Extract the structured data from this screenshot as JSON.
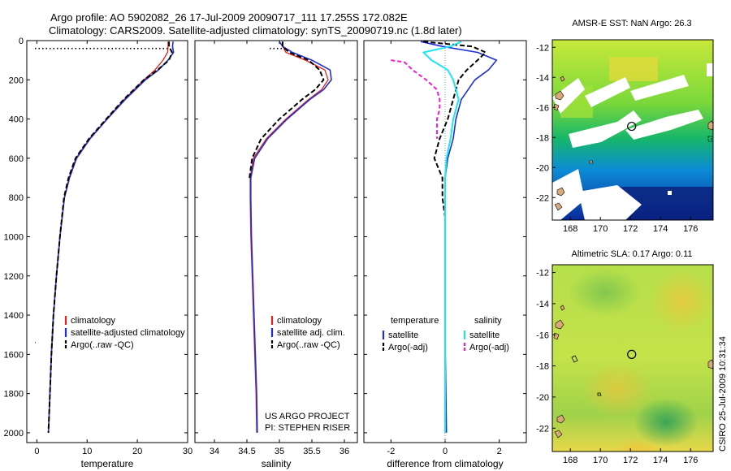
{
  "header": {
    "line1": "Argo profile: AO 5902082_26 17-Jul-2009 20090717_111 17.255S 172.082E",
    "line2": "Climatology: CARS2009. Satellite-adjusted climatology: synTS_20090719.nc (1.8d later)"
  },
  "footer_left": "US ARGO PROJECT",
  "footer_left2": "PI: STEPHEN RISER",
  "side_credit": "CSIRO 25-Jul-2009 10:31:34",
  "colors": {
    "climatology": "#e8211c",
    "satellite": "#1f2fd8",
    "argo": "#000000",
    "sat_salinity": "#1ee6f0",
    "argo_salinity": "#f21cd0"
  },
  "chart_data": [
    {
      "type": "line",
      "title": "",
      "xlabel": "temperature",
      "ylabel": "",
      "xlim": [
        -2,
        30
      ],
      "ylim": [
        2050,
        0
      ],
      "x_ticks": [
        0,
        10,
        20,
        30
      ],
      "y_ticks": [
        0,
        200,
        400,
        600,
        800,
        1000,
        1200,
        1400,
        1600,
        1800,
        2000
      ],
      "legend": [
        "climatology",
        "satellite-adjusted climatology",
        "Argo(..raw -QC)"
      ],
      "series": [
        {
          "name": "climatology",
          "depth": [
            5,
            30,
            60,
            100,
            150,
            200,
            300,
            400,
            500,
            600,
            700,
            800,
            1000,
            1200,
            1400,
            1600,
            1800,
            2000
          ],
          "values": [
            26.1,
            26.1,
            26.0,
            25.1,
            23.5,
            21.3,
            17.4,
            13.9,
            10.5,
            7.8,
            6.4,
            5.5,
            4.6,
            3.9,
            3.3,
            2.9,
            2.6,
            2.3
          ]
        },
        {
          "name": "satellite-adjusted climatology",
          "depth": [
            5,
            30,
            60,
            100,
            150,
            200,
            300,
            400,
            500,
            600,
            700,
            800,
            1000,
            1200,
            1400,
            1600,
            1800,
            2000
          ],
          "values": [
            27.1,
            27.0,
            27.2,
            26.1,
            24.2,
            21.6,
            17.6,
            14.0,
            10.6,
            7.9,
            6.5,
            5.5,
            4.6,
            3.9,
            3.3,
            2.9,
            2.6,
            2.3
          ]
        },
        {
          "name": "Argo(..raw -QC)",
          "depth": [
            5,
            30,
            60,
            100,
            150,
            200,
            300,
            400,
            500,
            600,
            700,
            800,
            1000,
            1200,
            1400,
            1600,
            1800,
            2000
          ],
          "values": [
            26.3,
            26.3,
            26.9,
            26.3,
            24.0,
            21.3,
            17.3,
            13.8,
            10.4,
            7.7,
            6.3,
            5.4,
            4.6,
            3.9,
            3.3,
            2.9,
            2.6,
            2.3
          ]
        }
      ]
    },
    {
      "type": "line",
      "title": "",
      "xlabel": "salinity",
      "ylabel": "",
      "xlim": [
        33.7,
        36.2
      ],
      "ylim": [
        2050,
        0
      ],
      "x_ticks": [
        34,
        34.5,
        35,
        35.5,
        36
      ],
      "y_ticks": [
        0,
        200,
        400,
        600,
        800,
        1000,
        1200,
        1400,
        1600,
        1800,
        2000
      ],
      "legend": [
        "climatology",
        "satellite adj. clim.",
        "Argo(..raw -QC)"
      ],
      "series": [
        {
          "name": "climatology",
          "depth": [
            5,
            30,
            60,
            100,
            150,
            200,
            250,
            300,
            400,
            500,
            600,
            700,
            800,
            1000,
            1200,
            1400,
            1600,
            1800,
            2000
          ],
          "values": [
            35.05,
            35.05,
            35.1,
            35.4,
            35.7,
            35.75,
            35.65,
            35.45,
            35.1,
            34.8,
            34.6,
            34.55,
            34.55,
            34.56,
            34.58,
            34.6,
            34.62,
            34.64,
            34.65
          ]
        },
        {
          "name": "satellite adj. clim.",
          "depth": [
            5,
            30,
            60,
            100,
            150,
            200,
            250,
            300,
            400,
            500,
            600,
            700,
            800,
            1000,
            1200,
            1400,
            1600,
            1800,
            2000
          ],
          "values": [
            35.0,
            35.05,
            35.2,
            35.5,
            35.78,
            35.8,
            35.68,
            35.47,
            35.12,
            34.82,
            34.62,
            34.56,
            34.56,
            34.57,
            34.59,
            34.61,
            34.63,
            34.65,
            34.66
          ]
        },
        {
          "name": "Argo(..raw -QC)",
          "depth": [
            5,
            30,
            60,
            100,
            150,
            200,
            250,
            300,
            400,
            500,
            600,
            700
          ],
          "values": [
            35.05,
            35.05,
            35.15,
            35.45,
            35.62,
            35.68,
            35.55,
            35.35,
            35.0,
            34.72,
            34.58,
            34.54
          ]
        }
      ]
    },
    {
      "type": "line",
      "title": "",
      "xlabel": "difference from climatology",
      "ylabel": "",
      "xlim": [
        -3,
        3
      ],
      "ylim": [
        2050,
        0
      ],
      "x_ticks": [
        -2,
        0,
        2
      ],
      "y_ticks": [
        0,
        200,
        400,
        600,
        800,
        1000,
        1200,
        1400,
        1600,
        1800,
        2000
      ],
      "legend_titles": [
        "temperature",
        "salinity"
      ],
      "legend": [
        "satellite",
        "Argo(-adj)",
        "satellite",
        "Argo(-adj)"
      ],
      "series": [
        {
          "name": "temperature satellite",
          "depth": [
            5,
            30,
            60,
            100,
            150,
            200,
            300,
            400,
            500,
            600,
            700,
            800,
            1000,
            1500,
            2000
          ],
          "values": [
            -0.9,
            -0.1,
            1.2,
            1.9,
            1.6,
            1.1,
            0.6,
            0.4,
            0.3,
            0.1,
            0.0,
            0.0,
            0.0,
            0.0,
            0.05
          ]
        },
        {
          "name": "temperature Argo(-adj)",
          "depth": [
            5,
            30,
            60,
            100,
            150,
            200,
            300,
            400,
            500,
            600,
            700,
            800,
            900,
            1000
          ],
          "values": [
            -0.8,
            1.0,
            1.5,
            1.2,
            0.8,
            0.5,
            0.3,
            0.1,
            -0.2,
            -0.4,
            -0.1,
            -0.1,
            0.0,
            0.0
          ]
        },
        {
          "name": "salinity satellite",
          "depth": [
            5,
            30,
            60,
            100,
            150,
            200,
            300,
            400,
            500,
            600,
            700,
            800,
            1000,
            1500,
            2000
          ],
          "values": [
            0.6,
            0.2,
            -0.8,
            -0.5,
            0.1,
            0.3,
            0.5,
            0.3,
            0.2,
            0.05,
            0.0,
            0.0,
            0.0,
            0.0,
            0.0
          ]
        },
        {
          "name": "salinity Argo(-adj)",
          "depth": [
            100,
            110,
            150,
            200,
            250,
            300,
            350,
            400,
            500
          ],
          "values": [
            -2.0,
            -1.5,
            -1.2,
            -0.7,
            -0.3,
            -0.2,
            -0.2,
            -0.3,
            -0.3
          ]
        }
      ]
    },
    {
      "type": "heatmap",
      "title": "AMSR-E SST: NaN Argo: 26.3",
      "xlabel": "",
      "ylabel": "",
      "xlim": [
        166.8,
        177.5
      ],
      "ylim": [
        -23.5,
        -11.5
      ],
      "x_ticks": [
        168,
        170,
        172,
        174,
        176
      ],
      "y_ticks": [
        -12,
        -14,
        -16,
        -18,
        -20,
        -22
      ],
      "marker": {
        "lon": 172.08,
        "lat": -17.26
      }
    },
    {
      "type": "heatmap",
      "title": "Altimetric SLA: 0.17 Argo: 0.11",
      "xlabel": "",
      "ylabel": "",
      "xlim": [
        166.8,
        177.5
      ],
      "ylim": [
        -23.5,
        -11.5
      ],
      "x_ticks": [
        168,
        170,
        172,
        174,
        176
      ],
      "y_ticks": [
        -12,
        -14,
        -16,
        -18,
        -20,
        -22
      ],
      "marker": {
        "lon": 172.08,
        "lat": -17.26
      }
    }
  ]
}
